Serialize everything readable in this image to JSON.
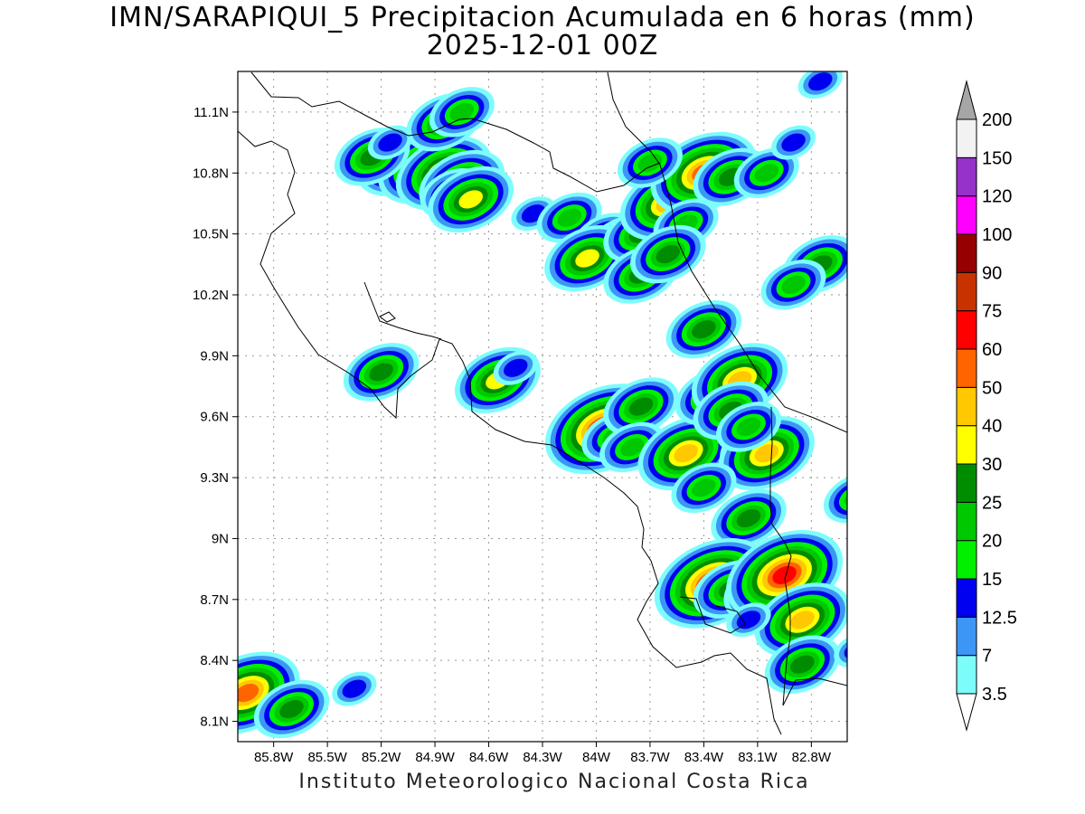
{
  "title": {
    "line1": "IMN/SARAPIQUI_5 Precipitacion Acumulada en 6 horas (mm)",
    "line2": "2025-12-01 00Z"
  },
  "footer": "Instituto Meteorologico Nacional Costa Rica",
  "map": {
    "lon_range": [
      -86.0,
      -82.6
    ],
    "lat_range": [
      8.0,
      11.3
    ],
    "y_ticks": [
      "8.1N",
      "8.4N",
      "8.7N",
      "9N",
      "9.3N",
      "9.6N",
      "9.9N",
      "10.2N",
      "10.5N",
      "10.8N",
      "11.1N"
    ],
    "y_tick_values": [
      8.1,
      8.4,
      8.7,
      9.0,
      9.3,
      9.6,
      9.9,
      10.2,
      10.5,
      10.8,
      11.1
    ],
    "x_ticks": [
      "85.8W",
      "85.5W",
      "85.2W",
      "84.9W",
      "84.6W",
      "84.3W",
      "84W",
      "83.7W",
      "83.4W",
      "83.1W",
      "82.8W"
    ],
    "x_tick_values": [
      -85.8,
      -85.5,
      -85.2,
      -84.9,
      -84.6,
      -84.3,
      -84.0,
      -83.7,
      -83.4,
      -83.1,
      -82.8
    ],
    "grid": "dotted"
  },
  "colorbar": {
    "labels": [
      "3.5",
      "7",
      "12.5",
      "15",
      "20",
      "25",
      "30",
      "40",
      "50",
      "60",
      "75",
      "90",
      "100",
      "120",
      "150",
      "200"
    ],
    "colors": [
      "#7dfcfc",
      "#3c96f5",
      "#0000f0",
      "#00f000",
      "#00c800",
      "#008c00",
      "#ffff00",
      "#ffc800",
      "#ff6400",
      "#ff0000",
      "#c83200",
      "#960000",
      "#ff00ff",
      "#9632c8",
      "#f2f2f2",
      "#a6a6a6"
    ]
  },
  "precip_cells": [
    {
      "lon": -85.1,
      "lat": 10.85,
      "v": 30
    },
    {
      "lon": -84.95,
      "lat": 10.83,
      "v": 40
    },
    {
      "lon": -84.85,
      "lat": 10.8,
      "v": 40
    },
    {
      "lon": -84.75,
      "lat": 10.75,
      "v": 30
    },
    {
      "lon": -85.25,
      "lat": 10.88,
      "v": 25
    },
    {
      "lon": -84.85,
      "lat": 11.05,
      "v": 25
    },
    {
      "lon": -84.8,
      "lat": 10.7,
      "v": 20
    },
    {
      "lon": -84.7,
      "lat": 10.67,
      "v": 30
    },
    {
      "lon": -85.15,
      "lat": 10.95,
      "v": 12.5
    },
    {
      "lon": -84.75,
      "lat": 11.1,
      "v": 20
    },
    {
      "lon": -84.35,
      "lat": 10.6,
      "v": 12.5
    },
    {
      "lon": -84.15,
      "lat": 10.58,
      "v": 20
    },
    {
      "lon": -83.95,
      "lat": 10.48,
      "v": 20
    },
    {
      "lon": -83.85,
      "lat": 10.45,
      "v": 25
    },
    {
      "lon": -84.05,
      "lat": 10.38,
      "v": 30
    },
    {
      "lon": -83.75,
      "lat": 10.5,
      "v": 25
    },
    {
      "lon": -83.6,
      "lat": 10.65,
      "v": 40
    },
    {
      "lon": -83.4,
      "lat": 10.8,
      "v": 50
    },
    {
      "lon": -83.25,
      "lat": 10.78,
      "v": 25
    },
    {
      "lon": -83.05,
      "lat": 10.8,
      "v": 20
    },
    {
      "lon": -83.7,
      "lat": 10.85,
      "v": 20
    },
    {
      "lon": -83.5,
      "lat": 10.55,
      "v": 20
    },
    {
      "lon": -83.75,
      "lat": 10.3,
      "v": 25
    },
    {
      "lon": -83.6,
      "lat": 10.4,
      "v": 25
    },
    {
      "lon": -82.9,
      "lat": 10.95,
      "v": 12.5
    },
    {
      "lon": -82.75,
      "lat": 11.25,
      "v": 12.5
    },
    {
      "lon": -82.75,
      "lat": 10.35,
      "v": 25
    },
    {
      "lon": -82.9,
      "lat": 10.25,
      "v": 20
    },
    {
      "lon": -84.55,
      "lat": 9.78,
      "v": 30
    },
    {
      "lon": -85.2,
      "lat": 9.82,
      "v": 25
    },
    {
      "lon": -84.45,
      "lat": 9.84,
      "v": 12.5
    },
    {
      "lon": -83.96,
      "lat": 9.54,
      "v": 60
    },
    {
      "lon": -83.9,
      "lat": 9.5,
      "v": 20
    },
    {
      "lon": -83.75,
      "lat": 9.65,
      "v": 25
    },
    {
      "lon": -83.8,
      "lat": 9.45,
      "v": 20
    },
    {
      "lon": -83.4,
      "lat": 10.03,
      "v": 25
    },
    {
      "lon": -83.5,
      "lat": 9.42,
      "v": 40
    },
    {
      "lon": -83.35,
      "lat": 9.7,
      "v": 25
    },
    {
      "lon": -83.2,
      "lat": 9.78,
      "v": 40
    },
    {
      "lon": -83.25,
      "lat": 9.63,
      "v": 25
    },
    {
      "lon": -83.1,
      "lat": 9.45,
      "v": 25
    },
    {
      "lon": -83.05,
      "lat": 9.42,
      "v": 40
    },
    {
      "lon": -83.15,
      "lat": 9.55,
      "v": 20
    },
    {
      "lon": -83.4,
      "lat": 9.25,
      "v": 20
    },
    {
      "lon": -83.15,
      "lat": 9.1,
      "v": 25
    },
    {
      "lon": -82.55,
      "lat": 9.2,
      "v": 20
    },
    {
      "lon": -83.35,
      "lat": 8.78,
      "v": 60
    },
    {
      "lon": -83.25,
      "lat": 8.75,
      "v": 25
    },
    {
      "lon": -83.05,
      "lat": 8.75,
      "v": 30
    },
    {
      "lon": -82.95,
      "lat": 8.82,
      "v": 60
    },
    {
      "lon": -82.85,
      "lat": 8.6,
      "v": 40
    },
    {
      "lon": -82.85,
      "lat": 8.38,
      "v": 25
    },
    {
      "lon": -83.15,
      "lat": 8.6,
      "v": 12.5
    },
    {
      "lon": -85.95,
      "lat": 8.24,
      "v": 50
    },
    {
      "lon": -85.7,
      "lat": 8.16,
      "v": 25
    },
    {
      "lon": -85.35,
      "lat": 8.26,
      "v": 12.5
    },
    {
      "lon": -82.55,
      "lat": 8.45,
      "v": 12.5
    }
  ]
}
